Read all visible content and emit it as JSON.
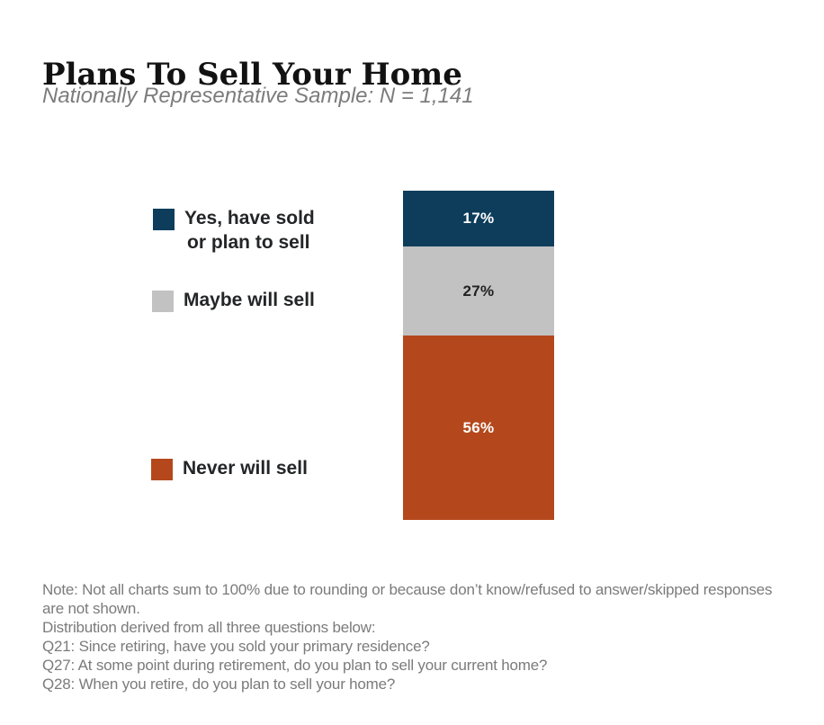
{
  "header": {
    "title": "Plans To Sell Your Home",
    "subtitle": "Nationally Representative Sample: N = 1,141"
  },
  "chart_data": {
    "type": "bar",
    "variant": "single-column-stacked",
    "title": "Plans To Sell Your Home",
    "subtitle": "Nationally Representative Sample: N = 1,141",
    "sample_size": "N = 1,141",
    "categories": [
      "Yes, have sold or plan to sell",
      "Maybe will sell",
      "Never will sell"
    ],
    "values": [
      17,
      27,
      56
    ],
    "unit": "%",
    "value_labels": [
      "17%",
      "27%",
      "56%"
    ],
    "colors": [
      "#0e3d5c",
      "#c2c2c2",
      "#b4481c"
    ],
    "value_label_colors": [
      "#ffffff",
      "#222222",
      "#ffffff"
    ],
    "legend_position": "left",
    "axes": "none",
    "grid": false
  },
  "legend": {
    "items": [
      {
        "label_line1": "Yes, have sold",
        "label_line2": "or plan to sell",
        "color": "#0e3d5c"
      },
      {
        "label_line1": "Maybe will sell",
        "label_line2": "",
        "color": "#c2c2c2"
      },
      {
        "label_line1": "Never will sell",
        "label_line2": "",
        "color": "#b4481c"
      }
    ]
  },
  "notes": {
    "lines": [
      "Note: Not all charts sum to 100% due to rounding or because don’t know/refused to answer/skipped responses",
      "are not shown.",
      "Distribution derived from all three questions below:",
      "Q21: Since retiring, have you sold your primary residence?",
      "Q27: At some point during retirement, do you plan to sell your current home?",
      "Q28: When you retire, do you plan to sell your home?"
    ]
  }
}
